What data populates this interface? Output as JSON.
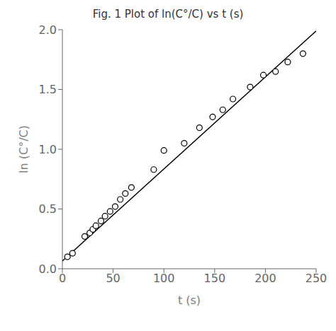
{
  "chart_data": {
    "type": "scatter",
    "title": "Fig. 1  Plot of ln(C°/C) vs t (s)",
    "x_label": "t (s)",
    "y_label": "ln (C°/C)",
    "xlim": [
      0,
      250
    ],
    "ylim": [
      0.0,
      2.0
    ],
    "xticks": [
      0,
      50,
      100,
      150,
      200,
      250
    ],
    "yticks": [
      {
        "value": 0,
        "label": "0.0"
      },
      0.5,
      {
        "value": 1,
        "label": "1.0"
      },
      1.5,
      {
        "value": 2,
        "label": "2.0"
      }
    ],
    "series": [
      {
        "type": "line",
        "color": "black",
        "x": [
          0,
          250
        ],
        "values": [
          0.065,
          1.99
        ]
      },
      {
        "type": "scatter",
        "color": "black",
        "marker": "circle",
        "x": [
          5,
          10,
          22,
          27,
          30,
          33,
          38,
          42,
          47,
          52,
          57,
          62,
          68,
          90,
          100,
          120,
          135,
          148,
          158,
          168,
          185,
          198,
          210,
          222,
          237
        ],
        "values": [
          0.1,
          0.13,
          0.27,
          0.3,
          0.33,
          0.36,
          0.4,
          0.44,
          0.48,
          0.52,
          0.58,
          0.63,
          0.68,
          0.83,
          0.99,
          1.05,
          1.18,
          1.27,
          1.33,
          1.42,
          1.52,
          1.62,
          1.65,
          1.73,
          1.8
        ]
      }
    ]
  }
}
